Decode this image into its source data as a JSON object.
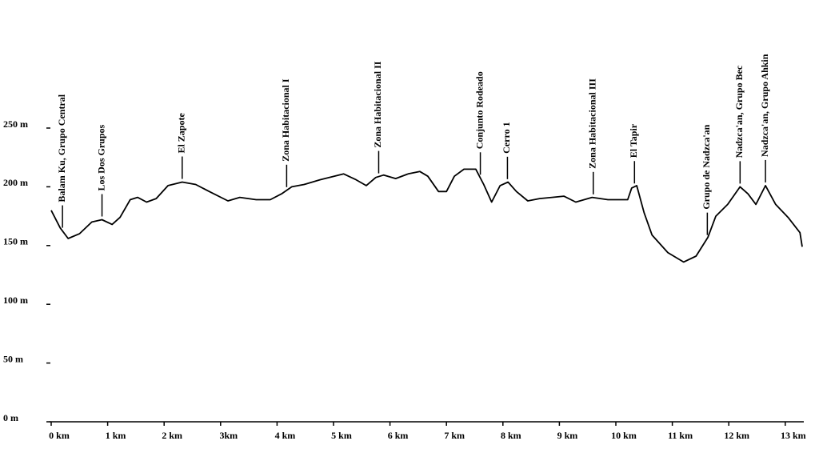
{
  "chart_data": {
    "type": "line",
    "x": [
      0,
      0.16,
      0.3,
      0.5,
      0.72,
      0.9,
      1.08,
      1.22,
      1.4,
      1.53,
      1.69,
      1.86,
      2.07,
      2.32,
      2.56,
      2.8,
      3.13,
      3.34,
      3.63,
      3.88,
      4.08,
      4.26,
      4.48,
      4.76,
      5.18,
      5.4,
      5.58,
      5.75,
      5.89,
      6.1,
      6.32,
      6.53,
      6.67,
      6.86,
      7.0,
      7.14,
      7.31,
      7.52,
      7.66,
      7.8,
      7.95,
      8.09,
      8.24,
      8.44,
      8.65,
      8.87,
      9.08,
      9.29,
      9.58,
      9.86,
      10.07,
      10.21,
      10.28,
      10.37,
      10.5,
      10.64,
      10.92,
      11.2,
      11.42,
      11.63,
      11.77,
      11.98,
      12.2,
      12.34,
      12.48,
      12.65,
      12.83,
      13.05,
      13.26,
      13.3
    ],
    "series": [
      {
        "color": "#000000",
        "values": [
          180,
          165,
          156,
          160,
          170,
          172,
          168,
          174,
          189,
          191,
          187,
          190,
          201,
          204,
          202,
          196,
          188,
          191,
          189,
          189,
          194,
          200,
          202,
          206,
          211,
          206,
          201,
          208,
          210,
          207,
          211,
          213,
          209,
          196,
          196,
          209,
          215,
          215,
          202,
          187,
          201,
          204,
          196,
          188,
          190,
          191,
          192,
          187,
          191,
          189,
          189,
          189,
          199,
          201,
          178,
          159,
          144,
          136,
          141,
          157,
          175,
          185,
          200,
          194,
          185,
          201,
          185,
          174,
          161,
          149
        ]
      }
    ],
    "xlim": [
      0,
      13.35
    ],
    "ylim": [
      0,
      250
    ],
    "xticks": [
      {
        "value": 0,
        "label": "0 km"
      },
      {
        "value": 1,
        "label": "1 km"
      },
      {
        "value": 2,
        "label": "2 km"
      },
      {
        "value": 3,
        "label": "3km"
      },
      {
        "value": 4,
        "label": "4 km"
      },
      {
        "value": 5,
        "label": "5 km"
      },
      {
        "value": 6,
        "label": "6 km"
      },
      {
        "value": 7,
        "label": "7 km"
      },
      {
        "value": 8,
        "label": "8 km"
      },
      {
        "value": 9,
        "label": "9 km"
      },
      {
        "value": 10,
        "label": "10 km"
      },
      {
        "value": 11,
        "label": "11 km"
      },
      {
        "value": 12,
        "label": "12 km"
      },
      {
        "value": 13,
        "label": "13 km"
      }
    ],
    "yticks": [
      {
        "value": 0,
        "label": "0 m"
      },
      {
        "value": 50,
        "label": "50 m"
      },
      {
        "value": 100,
        "label": "100 m"
      },
      {
        "value": 150,
        "label": "150 m"
      },
      {
        "value": 200,
        "label": "200 m"
      },
      {
        "value": 250,
        "label": "250 m"
      }
    ],
    "annotations": [
      {
        "text": "Balam Ku,  Grupo Central",
        "x": 0.2
      },
      {
        "text": "Los Dos Grupos",
        "x": 0.9
      },
      {
        "text": "El Zapote",
        "x": 2.32
      },
      {
        "text": "Zona Habitacional I",
        "x": 4.17
      },
      {
        "text": "Zona Habitacional II",
        "x": 5.8
      },
      {
        "text": "Conjunto Rodeado",
        "x": 7.6
      },
      {
        "text": "Cerro 1",
        "x": 8.08
      },
      {
        "text": "Zona Habitacional III",
        "x": 9.6
      },
      {
        "text": "El Tapir",
        "x": 10.33
      },
      {
        "text": "Grupo de Nadzca'an",
        "x": 11.62
      },
      {
        "text": "Nadzca'an, Grupo Bec",
        "x": 12.2
      },
      {
        "text": "Nadzca'an, Grupo Ahkin",
        "x": 12.65
      }
    ]
  }
}
